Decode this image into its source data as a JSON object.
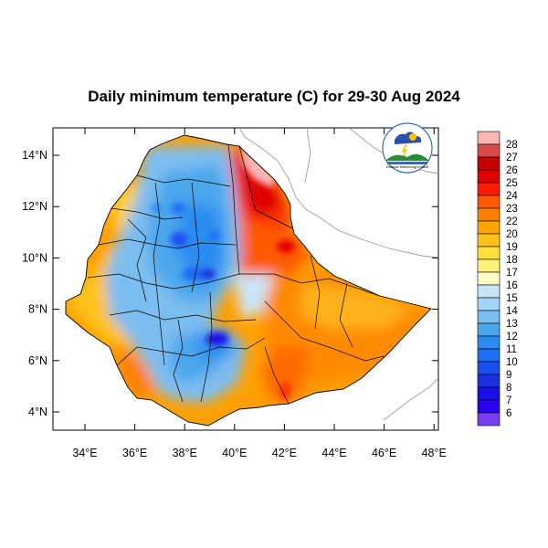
{
  "title": "Daily minimum temperature (C) for 29-30 Aug 2024",
  "logo": {
    "text": "Ethiopian Meteorology Institute"
  },
  "map": {
    "lon_range": [
      33,
      48.2
    ],
    "lat_range": [
      3.2,
      15
    ],
    "x_ticks": [
      "34°E",
      "36°E",
      "38°E",
      "40°E",
      "42°E",
      "44°E",
      "46°E",
      "48°E"
    ],
    "y_ticks": [
      "4°N",
      "6°N",
      "8°N",
      "10°N",
      "12°N",
      "14°N"
    ]
  },
  "colorbar": {
    "levels": [
      "28",
      "27",
      "26",
      "25",
      "24",
      "23",
      "22",
      "20",
      "19",
      "18",
      "17",
      "16",
      "15",
      "14",
      "13",
      "12",
      "11",
      "10",
      "9",
      "8",
      "7",
      "6"
    ],
    "colors": [
      "#f9b4b4",
      "#d94a4a",
      "#c40000",
      "#e00000",
      "#ff1a00",
      "#ff5a00",
      "#ff7f00",
      "#ffa500",
      "#ffc21a",
      "#ffde3d",
      "#fff27a",
      "#fffcc4",
      "#c9e6f7",
      "#a3d3f5",
      "#7cbdf0",
      "#4ba6ec",
      "#2a8cf0",
      "#1e6df5",
      "#1a50f0",
      "#1930e0",
      "#1a10e8",
      "#2a00f0",
      "#7a3cf0"
    ]
  }
}
